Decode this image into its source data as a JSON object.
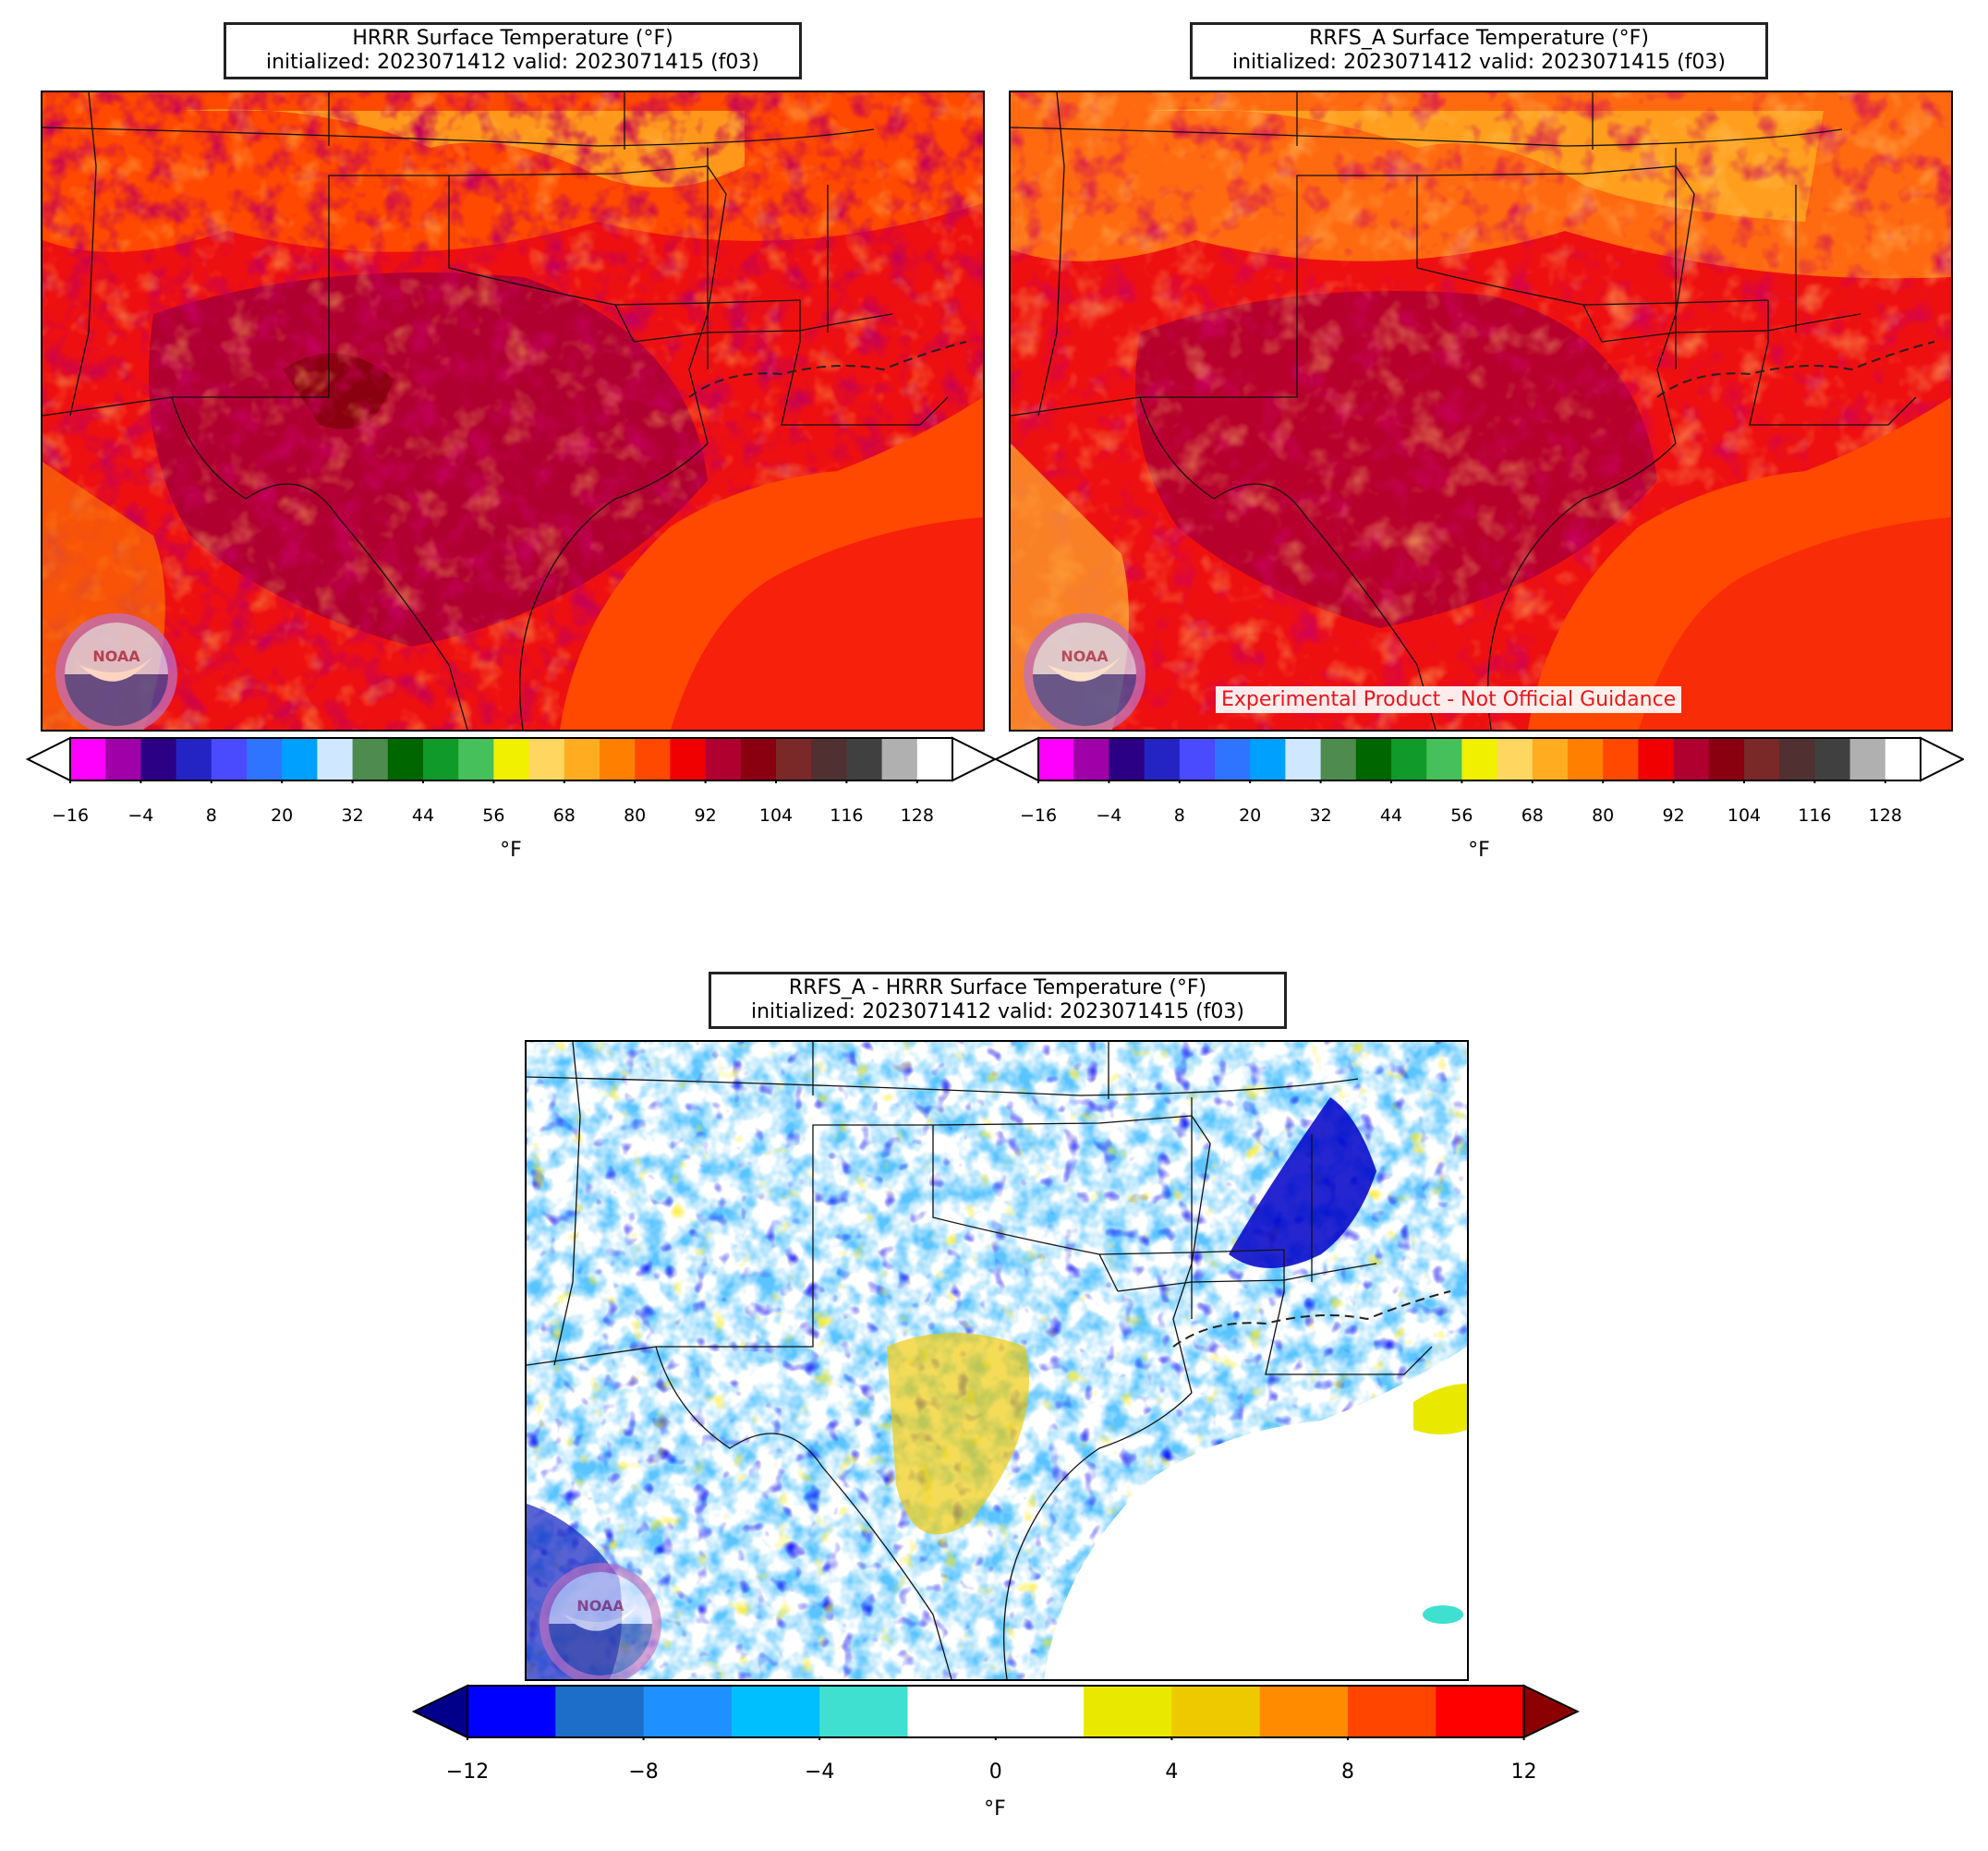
{
  "panels": {
    "hrrr": {
      "title_line1": "HRRR Surface Temperature (°F)",
      "title_line2": "initialized: 2023071412 valid: 2023071415 (f03)"
    },
    "rrfs": {
      "title_line1": "RRFS_A Surface Temperature (°F)",
      "title_line2": "initialized: 2023071412 valid: 2023071415 (f03)",
      "notice": "Experimental Product - Not Official Guidance"
    },
    "diff": {
      "title_line1": "RRFS_A - HRRR Surface Temperature (°F)",
      "title_line2": "initialized: 2023071412 valid: 2023071415 (f03)"
    }
  },
  "temp_colorbar": {
    "unit": "°F",
    "ticks": [
      "−16",
      "−4",
      "8",
      "20",
      "32",
      "44",
      "56",
      "68",
      "80",
      "92",
      "104",
      "116",
      "128"
    ],
    "colors": [
      "#ff00ff",
      "#a000a8",
      "#2b0084",
      "#2424c4",
      "#4a4aff",
      "#2e74ff",
      "#00a0ff",
      "#cfe8ff",
      "#4e8b4e",
      "#006600",
      "#109a2a",
      "#46c05a",
      "#f0f000",
      "#ffd760",
      "#ffac20",
      "#ff8000",
      "#ff4800",
      "#f00000",
      "#b00030",
      "#8a0010",
      "#7a2828",
      "#503030",
      "#404040",
      "#b0b0b0"
    ]
  },
  "diff_colorbar": {
    "unit": "°F",
    "ticks": [
      "−12",
      "−8",
      "−4",
      "0",
      "4",
      "8",
      "12"
    ],
    "colors": [
      "#0000ff",
      "#1c6ec8",
      "#1e90ff",
      "#00bfff",
      "#40e0d0",
      "#ffffff",
      "#ffffff",
      "#e8e800",
      "#eec900",
      "#ff8c00",
      "#ff4500",
      "#ff0000"
    ],
    "under_color": "#00008b",
    "over_color": "#8b0000"
  },
  "logo": {
    "text": "NOAA"
  }
}
